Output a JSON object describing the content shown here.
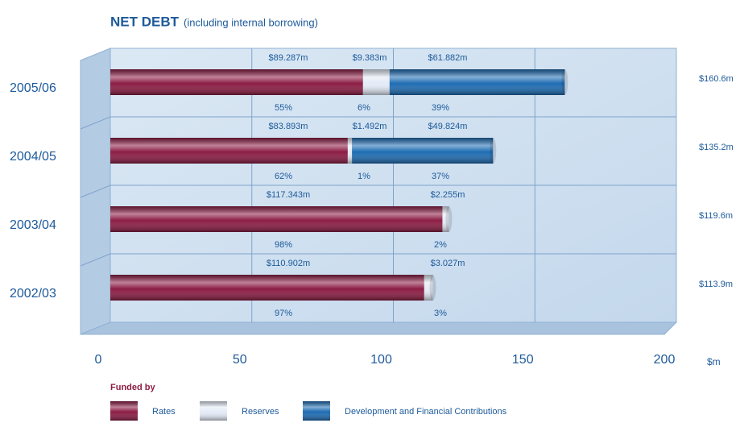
{
  "chart_data": {
    "type": "bar",
    "title": "NET DEBT",
    "subtitle": "(including internal borrowing)",
    "categories": [
      "2005/06",
      "2004/05",
      "2003/04",
      "2002/03"
    ],
    "series": [
      {
        "name": "Rates",
        "color": "#8c1d44",
        "values": [
          89.287,
          83.893,
          117.343,
          110.902
        ],
        "value_labels": [
          "$89.287m",
          "$83.893m",
          "$117.343m",
          "$110.902m"
        ],
        "percent_labels": [
          "55%",
          "62%",
          "98%",
          "97%"
        ]
      },
      {
        "name": "Reserves",
        "color": "#e4ebf7",
        "values": [
          9.383,
          1.492,
          2.255,
          3.027
        ],
        "value_labels": [
          "$9.383m",
          "$1.492m",
          "$2.255m",
          "$3.027m"
        ],
        "percent_labels": [
          "6%",
          "1%",
          "2%",
          "3%"
        ]
      },
      {
        "name": "Development and Financial Contributions",
        "color": "#1f6db3",
        "values": [
          61.882,
          49.824,
          null,
          null
        ],
        "value_labels": [
          "$61.882m",
          "$49.824m",
          null,
          null
        ],
        "percent_labels": [
          "39%",
          "37%",
          null,
          null
        ]
      }
    ],
    "total_labels": [
      "$160.6m",
      "$135.2m",
      "$119.6m",
      "$113.9m"
    ],
    "xlim": [
      0,
      200
    ],
    "xticks": [
      0,
      50,
      100,
      150,
      200
    ],
    "x_unit": "$m",
    "legend_title": "Funded by",
    "grid": true
  }
}
